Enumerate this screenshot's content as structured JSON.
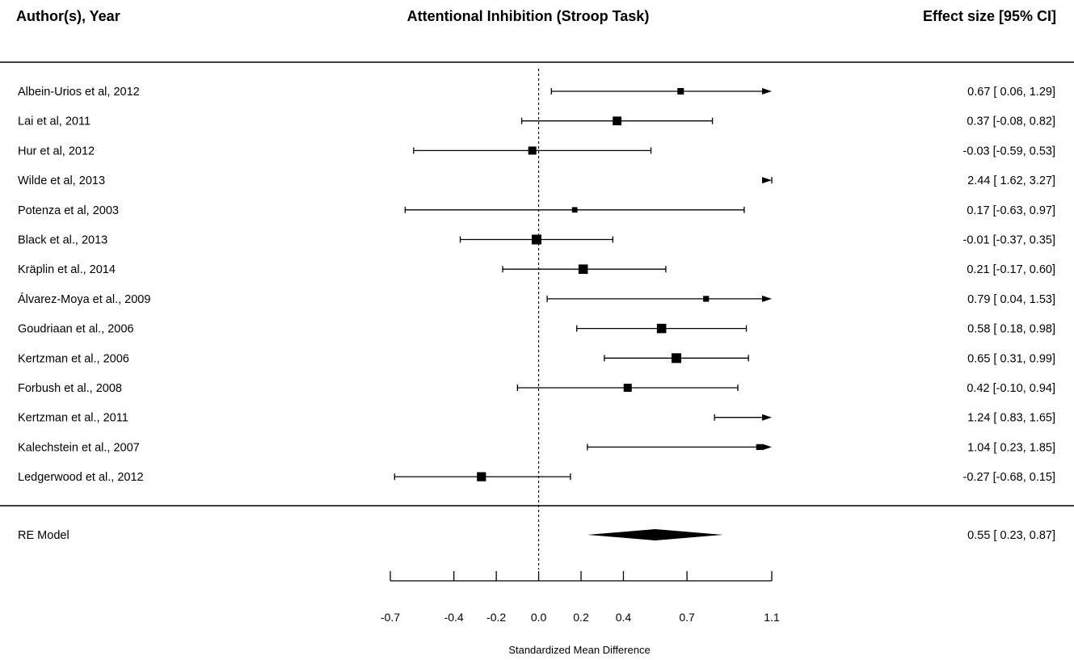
{
  "chart_data": {
    "type": "forest",
    "title": "Attentional Inhibition (Stroop Task)",
    "column_headers": {
      "study": "Author(s), Year",
      "effect": "Effect size [95% CI]"
    },
    "xlabel": "Standardized Mean Difference",
    "xlim": [
      -0.7,
      1.1
    ],
    "x_ticks": [
      {
        "value": -0.7,
        "label": "-0.7"
      },
      {
        "value": -0.4,
        "label": "-0.4"
      },
      {
        "value": -0.2,
        "label": "-0.2"
      },
      {
        "value": 0.0,
        "label": "0.0"
      },
      {
        "value": 0.2,
        "label": "0.2"
      },
      {
        "value": 0.4,
        "label": "0.4"
      },
      {
        "value": 0.7,
        "label": "0.7"
      },
      {
        "value": 1.1,
        "label": "1.1"
      }
    ],
    "reference_line": 0,
    "studies": [
      {
        "label": "Albein-Urios et al, 2012",
        "es": 0.67,
        "lo": 0.06,
        "hi": 1.29,
        "ci_text": "0.67 [ 0.06, 1.29]",
        "weight": 0.5
      },
      {
        "label": "Lai et al, 2011",
        "es": 0.37,
        "lo": -0.08,
        "hi": 0.82,
        "ci_text": "0.37 [-0.08, 0.82]",
        "weight": 0.85
      },
      {
        "label": "Hur et al, 2012",
        "es": -0.03,
        "lo": -0.59,
        "hi": 0.53,
        "ci_text": "-0.03 [-0.59, 0.53]",
        "weight": 0.75
      },
      {
        "label": "Wilde et al, 2013",
        "es": 2.44,
        "lo": 1.62,
        "hi": 3.27,
        "ci_text": "2.44 [ 1.62, 3.27]",
        "weight": 0.4
      },
      {
        "label": "Potenza et al, 2003",
        "es": 0.17,
        "lo": -0.63,
        "hi": 0.97,
        "ci_text": "0.17 [-0.63, 0.97]",
        "weight": 0.35
      },
      {
        "label": "Black et al., 2013",
        "es": -0.01,
        "lo": -0.37,
        "hi": 0.35,
        "ci_text": "-0.01 [-0.37, 0.35]",
        "weight": 1.0
      },
      {
        "label": "Kräplin et al., 2014",
        "es": 0.21,
        "lo": -0.17,
        "hi": 0.6,
        "ci_text": "0.21 [-0.17, 0.60]",
        "weight": 0.95
      },
      {
        "label": "Álvarez-Moya et al., 2009",
        "es": 0.79,
        "lo": 0.04,
        "hi": 1.53,
        "ci_text": "0.79 [ 0.04, 1.53]",
        "weight": 0.4
      },
      {
        "label": "Goudriaan et al., 2006",
        "es": 0.58,
        "lo": 0.18,
        "hi": 0.98,
        "ci_text": "0.58 [ 0.18, 0.98]",
        "weight": 0.95
      },
      {
        "label": "Kertzman et al., 2006",
        "es": 0.65,
        "lo": 0.31,
        "hi": 0.99,
        "ci_text": "0.65 [ 0.31, 0.99]",
        "weight": 1.0
      },
      {
        "label": "Forbush et al., 2008",
        "es": 0.42,
        "lo": -0.1,
        "hi": 0.94,
        "ci_text": "0.42 [-0.10, 0.94]",
        "weight": 0.75
      },
      {
        "label": "Kertzman et al., 2011",
        "es": 1.24,
        "lo": 0.83,
        "hi": 1.65,
        "ci_text": "1.24 [ 0.83, 1.65]",
        "weight": 0.9
      },
      {
        "label": "Kalechstein et al., 2007",
        "es": 1.04,
        "lo": 0.23,
        "hi": 1.85,
        "ci_text": "1.04 [ 0.23, 1.85]",
        "weight": 0.4
      },
      {
        "label": "Ledgerwood et al., 2012",
        "es": -0.27,
        "lo": -0.68,
        "hi": 0.15,
        "ci_text": "-0.27 [-0.68, 0.15]",
        "weight": 0.9
      }
    ],
    "summary": {
      "label": "RE Model",
      "es": 0.55,
      "lo": 0.23,
      "hi": 0.87,
      "ci_text": "0.55 [ 0.23, 0.87]"
    }
  }
}
